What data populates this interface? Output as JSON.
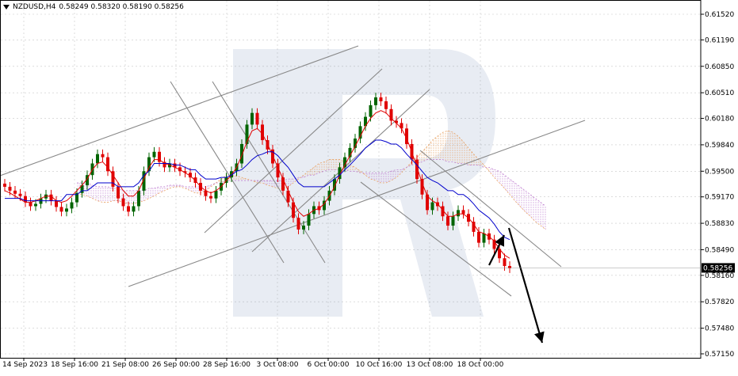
{
  "header": {
    "symbol": "NZDUSD,H4",
    "ohlc": "0.58249 0.58320 0.58190 0.58256"
  },
  "chart_data": {
    "type": "candlestick",
    "title": "NZDUSD,H4",
    "ylim": [
      0.5715,
      0.6152
    ],
    "y_ticks": [
      "0.61520",
      "0.61190",
      "0.60850",
      "0.60510",
      "0.60180",
      "0.59840",
      "0.59500",
      "0.59170",
      "0.58830",
      "0.58490",
      "0.58160",
      "0.57820",
      "0.57480",
      "0.57150"
    ],
    "x_ticks": [
      "14 Sep 2023",
      "18 Sep 16:00",
      "21 Sep 08:00",
      "26 Sep 00:00",
      "28 Sep 16:00",
      "3 Oct 08:00",
      "6 Oct 00:00",
      "10 Oct 16:00",
      "13 Oct 08:00",
      "18 Oct 00:00"
    ],
    "current_price": "0.58256",
    "grid": true,
    "colors": {
      "bull": "#006400",
      "bear": "#e00000",
      "tenkan": "#e00000",
      "kijun": "#0000cc",
      "cloud": "#e8a060",
      "cloud_b": "#c080d0",
      "trend": "#888888",
      "arrow": "#000000"
    },
    "close_path": [
      0.593,
      0.5925,
      0.5921,
      0.5918,
      0.591,
      0.5905,
      0.5908,
      0.5915,
      0.592,
      0.5912,
      0.5904,
      0.5898,
      0.5902,
      0.591,
      0.5922,
      0.5932,
      0.5945,
      0.596,
      0.5972,
      0.5968,
      0.595,
      0.593,
      0.5915,
      0.5905,
      0.5898,
      0.5905,
      0.5925,
      0.595,
      0.5968,
      0.5975,
      0.5962,
      0.5955,
      0.596,
      0.5955,
      0.595,
      0.5948,
      0.5942,
      0.5935,
      0.5925,
      0.5918,
      0.5915,
      0.5925,
      0.5935,
      0.5942,
      0.595,
      0.596,
      0.5985,
      0.601,
      0.6025,
      0.601,
      0.599,
      0.5978,
      0.596,
      0.5942,
      0.5925,
      0.591,
      0.589,
      0.5875,
      0.588,
      0.5895,
      0.5905,
      0.59,
      0.5912,
      0.5925,
      0.594,
      0.5955,
      0.5968,
      0.598,
      0.5992,
      0.6008,
      0.602,
      0.6035,
      0.6045,
      0.604,
      0.603,
      0.6015,
      0.6012,
      0.6005,
      0.5985,
      0.5965,
      0.594,
      0.592,
      0.59,
      0.591,
      0.5905,
      0.5892,
      0.588,
      0.5892,
      0.59,
      0.5895,
      0.5885,
      0.5872,
      0.5858,
      0.587,
      0.5862,
      0.585,
      0.5838,
      0.5828,
      0.5825
    ],
    "tenkan": [
      0.5925,
      0.5922,
      0.5918,
      0.5914,
      0.591,
      0.591,
      0.5912,
      0.5915,
      0.5918,
      0.5918,
      0.5912,
      0.591,
      0.5912,
      0.5918,
      0.5925,
      0.5932,
      0.594,
      0.5952,
      0.596,
      0.5962,
      0.5955,
      0.5945,
      0.5935,
      0.5925,
      0.5918,
      0.5918,
      0.5925,
      0.594,
      0.5955,
      0.5965,
      0.5965,
      0.596,
      0.5958,
      0.5955,
      0.5952,
      0.5948,
      0.5944,
      0.5938,
      0.593,
      0.5925,
      0.5922,
      0.5925,
      0.593,
      0.5938,
      0.5945,
      0.5955,
      0.597,
      0.5988,
      0.6002,
      0.6005,
      0.5998,
      0.5985,
      0.597,
      0.5955,
      0.594,
      0.5925,
      0.591,
      0.5898,
      0.5892,
      0.5895,
      0.59,
      0.5902,
      0.5908,
      0.5918,
      0.593,
      0.5945,
      0.5958,
      0.597,
      0.5982,
      0.5995,
      0.6008,
      0.6018,
      0.6025,
      0.6028,
      0.6025,
      0.6018,
      0.6012,
      0.6005,
      0.5992,
      0.5975,
      0.5955,
      0.5935,
      0.5918,
      0.5912,
      0.5908,
      0.59,
      0.5892,
      0.5892,
      0.5895,
      0.5895,
      0.589,
      0.5882,
      0.5872,
      0.587,
      0.5866,
      0.586,
      0.585,
      0.5842,
      0.5838
    ],
    "kijun": [
      0.5915,
      0.5915,
      0.5915,
      0.5915,
      0.5912,
      0.5912,
      0.5912,
      0.5912,
      0.5912,
      0.5912,
      0.5912,
      0.5912,
      0.592,
      0.592,
      0.592,
      0.5925,
      0.5925,
      0.593,
      0.5935,
      0.5935,
      0.5935,
      0.5935,
      0.593,
      0.593,
      0.593,
      0.593,
      0.5935,
      0.5945,
      0.595,
      0.596,
      0.596,
      0.596,
      0.596,
      0.5958,
      0.5958,
      0.5955,
      0.5952,
      0.5952,
      0.5945,
      0.594,
      0.594,
      0.594,
      0.5942,
      0.5942,
      0.5945,
      0.595,
      0.5952,
      0.5958,
      0.5965,
      0.597,
      0.5972,
      0.5975,
      0.5975,
      0.597,
      0.5962,
      0.5955,
      0.5945,
      0.5935,
      0.593,
      0.593,
      0.593,
      0.593,
      0.593,
      0.5935,
      0.594,
      0.5945,
      0.5952,
      0.5958,
      0.5965,
      0.5972,
      0.598,
      0.5985,
      0.599,
      0.599,
      0.5988,
      0.5985,
      0.5985,
      0.598,
      0.5972,
      0.5965,
      0.5958,
      0.595,
      0.5942,
      0.5938,
      0.5935,
      0.593,
      0.5925,
      0.5925,
      0.592,
      0.592,
      0.5915,
      0.5908,
      0.59,
      0.5895,
      0.589,
      0.5882,
      0.5872,
      0.5865,
      0.5862
    ],
    "span_a": [
      0.592,
      0.592,
      0.5918,
      0.5915,
      0.5912,
      0.591,
      0.591,
      0.5912,
      0.5912,
      0.591,
      0.5908,
      0.5908,
      0.591,
      0.5912,
      0.5915,
      0.5918,
      0.5922,
      0.5925,
      0.5928,
      0.593,
      0.593,
      0.5928,
      0.5925,
      0.5922,
      0.5922,
      0.5925,
      0.593,
      0.5935,
      0.594,
      0.5945,
      0.5945,
      0.5944,
      0.5942,
      0.594,
      0.5938,
      0.5935,
      0.5935,
      0.5932,
      0.593,
      0.5928,
      0.5928,
      0.593,
      0.5935,
      0.594,
      0.5945,
      0.595,
      0.5955,
      0.596,
      0.5962,
      0.5965,
      0.5965,
      0.5965,
      0.5962,
      0.5958,
      0.5955,
      0.595,
      0.5945,
      0.594,
      0.5938,
      0.5935,
      0.5935,
      0.5938,
      0.5942,
      0.5948,
      0.5955,
      0.5962,
      0.5968,
      0.5975,
      0.5982,
      0.599,
      0.5995,
      0.6,
      0.6002,
      0.6,
      0.5995,
      0.5988,
      0.598,
      0.5972,
      0.5965,
      0.5958,
      0.595,
      0.5942,
      0.5935,
      0.5928,
      0.592,
      0.5912,
      0.5905,
      0.5898,
      0.5892,
      0.5885,
      0.588,
      0.5875
    ],
    "span_b": [
      0.5935,
      0.5935,
      0.5935,
      0.5932,
      0.593,
      0.593,
      0.593,
      0.5928,
      0.5928,
      0.5925,
      0.5925,
      0.5925,
      0.5925,
      0.5925,
      0.5928,
      0.5928,
      0.593,
      0.593,
      0.5932,
      0.5932,
      0.5932,
      0.593,
      0.593,
      0.593,
      0.593,
      0.593,
      0.5932,
      0.5935,
      0.5935,
      0.5938,
      0.5938,
      0.5938,
      0.5938,
      0.5938,
      0.5938,
      0.5938,
      0.5938,
      0.5938,
      0.5938,
      0.5938,
      0.5938,
      0.594,
      0.594,
      0.5942,
      0.5942,
      0.5945,
      0.5945,
      0.5948,
      0.595,
      0.5952,
      0.5952,
      0.5952,
      0.5952,
      0.595,
      0.595,
      0.5948,
      0.5948,
      0.5948,
      0.5948,
      0.5948,
      0.5948,
      0.595,
      0.5952,
      0.5952,
      0.5955,
      0.5958,
      0.596,
      0.5962,
      0.5965,
      0.5965,
      0.5965,
      0.5965,
      0.5962,
      0.5962,
      0.596,
      0.596,
      0.5958,
      0.5958,
      0.5958,
      0.5955,
      0.5955,
      0.5952,
      0.595,
      0.5945,
      0.594,
      0.5935,
      0.593,
      0.5925,
      0.592,
      0.5915,
      0.591,
      0.5905
    ]
  }
}
